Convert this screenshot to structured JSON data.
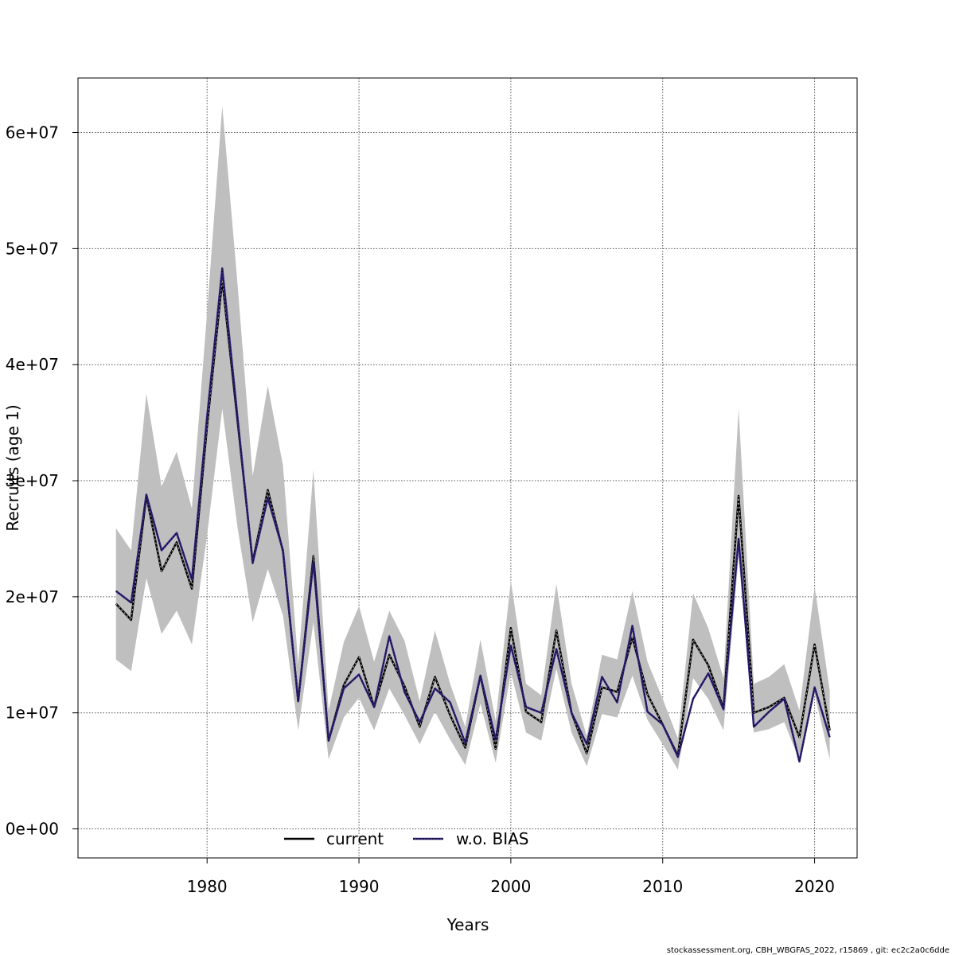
{
  "chart_data": {
    "type": "line",
    "title": "",
    "xlabel": "Years",
    "ylabel": "Recruits (age 1)",
    "xlim": [
      1971.5,
      2022.8
    ],
    "ylim": [
      -2500000,
      64700000
    ],
    "x_ticks": [
      1980,
      1990,
      2000,
      2010,
      2020
    ],
    "x_tick_labels": [
      "1980",
      "1990",
      "2000",
      "2010",
      "2020"
    ],
    "y_ticks": [
      0,
      10000000,
      20000000,
      30000000,
      40000000,
      50000000,
      60000000
    ],
    "y_tick_labels": [
      "0e+00",
      "1e+07",
      "2e+07",
      "3e+07",
      "4e+07",
      "5e+07",
      "6e+07"
    ],
    "grid": true,
    "legend_position": "bottom",
    "years": [
      1974,
      1975,
      1976,
      1977,
      1978,
      1979,
      1980,
      1981,
      1982,
      1983,
      1984,
      1985,
      1986,
      1987,
      1988,
      1989,
      1990,
      1991,
      1992,
      1993,
      1994,
      1995,
      1996,
      1997,
      1998,
      1999,
      2000,
      2001,
      2002,
      2003,
      2004,
      2005,
      2006,
      2007,
      2008,
      2009,
      2010,
      2011,
      2012,
      2013,
      2014,
      2015,
      2016,
      2017,
      2018,
      2019,
      2020,
      2021
    ],
    "band": {
      "name": "confidence interval",
      "color": "#bfbfbf",
      "lower": [
        14600000,
        13600000,
        21600000,
        16800000,
        18800000,
        15900000,
        25300000,
        36200000,
        26000000,
        17800000,
        22400000,
        18400000,
        8500000,
        17800000,
        6000000,
        9600000,
        11300000,
        8500000,
        12100000,
        9800000,
        7300000,
        10100000,
        7700000,
        5500000,
        10800000,
        5700000,
        13500000,
        8300000,
        7600000,
        13800000,
        8300000,
        5400000,
        9900000,
        9600000,
        13200000,
        9400000,
        7300000,
        5100000,
        13000000,
        11200000,
        8500000,
        23400000,
        8300000,
        8600000,
        9200000,
        5900000,
        11600000,
        6000000
      ],
      "upper": [
        25900000,
        24000000,
        37500000,
        29500000,
        32500000,
        27600000,
        44500000,
        62300000,
        47000000,
        30400000,
        38200000,
        31300000,
        14200000,
        30900000,
        10200000,
        16100000,
        19200000,
        14400000,
        18800000,
        16200000,
        11000000,
        17100000,
        12500000,
        8800000,
        16300000,
        9300000,
        21400000,
        12500000,
        11500000,
        21100000,
        12500000,
        8000000,
        15000000,
        14600000,
        20500000,
        14400000,
        11200000,
        7800000,
        20300000,
        17300000,
        13000000,
        36200000,
        12500000,
        13100000,
        14200000,
        10200000,
        20900000,
        11900000
      ]
    },
    "series": [
      {
        "name": "current",
        "color": "#000000",
        "dashed_overlay": true,
        "values": [
          19400000,
          18000000,
          28700000,
          22200000,
          24700000,
          20700000,
          34700000,
          47300000,
          35200000,
          23000000,
          29200000,
          23900000,
          11000000,
          23500000,
          7600000,
          12400000,
          14800000,
          10500000,
          15000000,
          12300000,
          8800000,
          13100000,
          9800000,
          7000000,
          13200000,
          6900000,
          17300000,
          10100000,
          9200000,
          17100000,
          10000000,
          6500000,
          12200000,
          11800000,
          16500000,
          11600000,
          9000000,
          6300000,
          16300000,
          14100000,
          10400000,
          28700000,
          10000000,
          10500000,
          11300000,
          7900000,
          15900000,
          8500000
        ]
      },
      {
        "name": "w.o. BIAS",
        "color": "#2e2078",
        "dashed_overlay": false,
        "values": [
          20500000,
          19500000,
          28800000,
          24000000,
          25500000,
          21500000,
          35500000,
          48300000,
          35500000,
          22900000,
          28500000,
          24000000,
          11000000,
          23000000,
          7600000,
          12100000,
          13300000,
          10500000,
          16600000,
          11800000,
          9200000,
          12100000,
          10900000,
          7400000,
          13200000,
          7700000,
          15800000,
          10500000,
          10000000,
          15500000,
          10000000,
          7300000,
          13100000,
          10900000,
          17500000,
          10100000,
          9000000,
          6200000,
          11200000,
          13400000,
          10300000,
          25000000,
          8800000,
          10100000,
          11200000,
          5800000,
          12200000,
          7900000
        ]
      }
    ],
    "footer": "stockassessment.org, CBH_WBGFAS_2022, r15869 , git: ec2c2a0c6dde"
  }
}
